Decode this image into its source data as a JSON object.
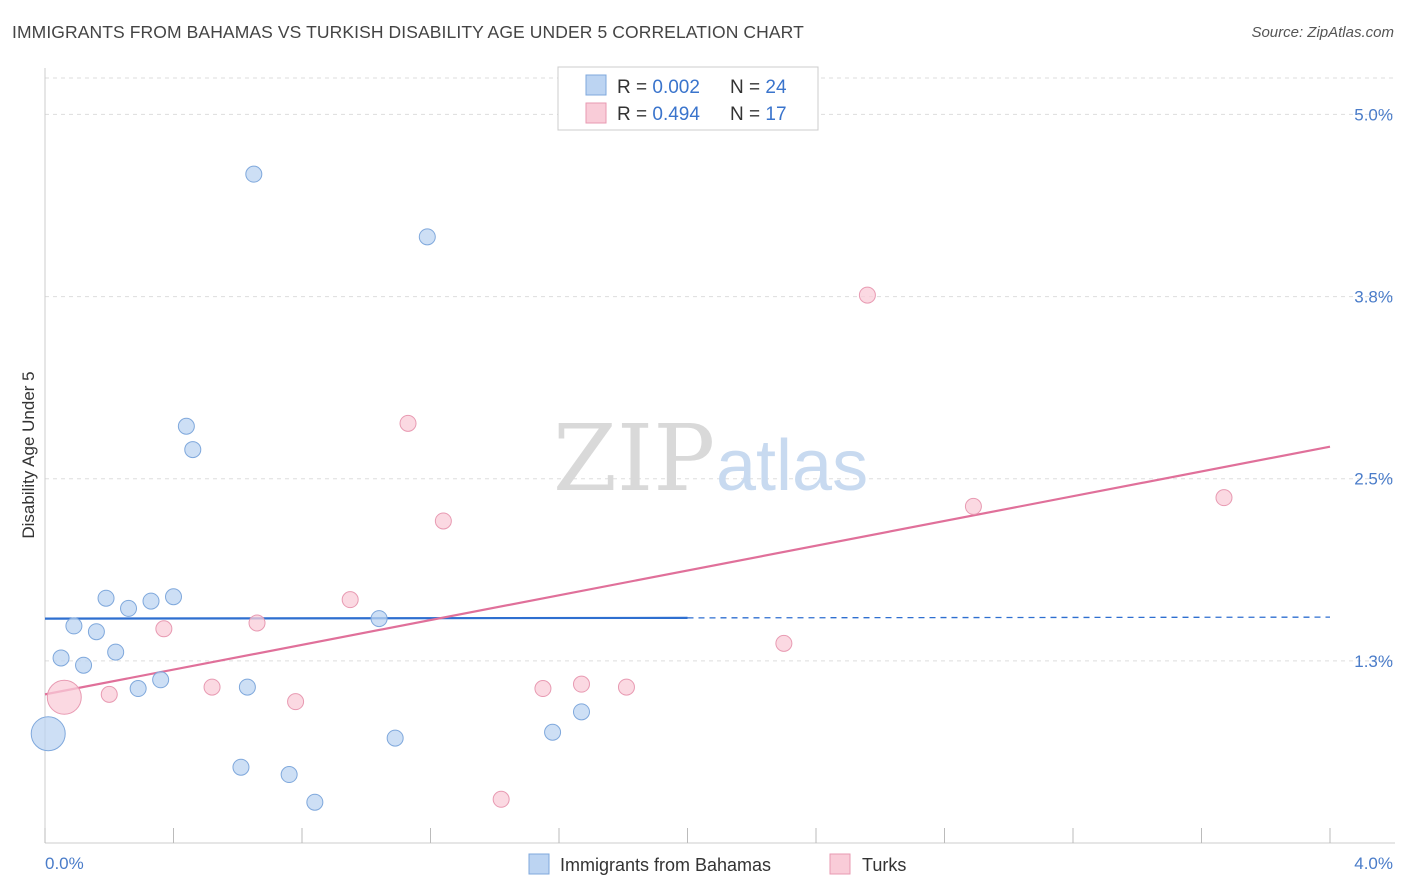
{
  "title": "IMMIGRANTS FROM BAHAMAS VS TURKISH DISABILITY AGE UNDER 5 CORRELATION CHART",
  "source": "Source: ZipAtlas.com",
  "watermark": {
    "zip": "ZIP",
    "atlas": "atlas"
  },
  "colors": {
    "blue_fill": "#bcd4f2",
    "blue_stroke": "#7fa8dc",
    "blue_line": "#2e6fd0",
    "pink_fill": "#f9ccd8",
    "pink_stroke": "#e89ab2",
    "pink_line": "#e0709a",
    "axis_label": "#4a7cc9",
    "grid": "#dddddd"
  },
  "legend": {
    "rows": [
      {
        "r_label": "R = ",
        "r_value": "0.002",
        "n_label": "N = ",
        "n_value": "24",
        "color": "blue"
      },
      {
        "r_label": "R = ",
        "r_value": "0.494",
        "n_label": "N = ",
        "n_value": "17",
        "color": "pink"
      }
    ]
  },
  "chart_data": {
    "type": "scatter",
    "title": "IMMIGRANTS FROM BAHAMAS VS TURKISH DISABILITY AGE UNDER 5 CORRELATION CHART",
    "xlabel": "",
    "ylabel": "Disability Age Under 5",
    "xlim": [
      0.0,
      4.0
    ],
    "ylim": [
      0.0,
      5.25
    ],
    "x_tick_labels": [
      "0.0%",
      "4.0%"
    ],
    "y_ticks": [
      1.25,
      2.5,
      3.75,
      5.0
    ],
    "y_tick_labels": [
      "1.3%",
      "2.5%",
      "3.8%",
      "5.0%"
    ],
    "grid": true,
    "legend_position": "top-center",
    "series": [
      {
        "name": "Immigrants from Bahamas",
        "color": "blue",
        "points": [
          {
            "x": 0.01,
            "y": 0.75,
            "big": true
          },
          {
            "x": 0.05,
            "y": 1.27
          },
          {
            "x": 0.09,
            "y": 1.49
          },
          {
            "x": 0.12,
            "y": 1.22
          },
          {
            "x": 0.16,
            "y": 1.45
          },
          {
            "x": 0.19,
            "y": 1.68
          },
          {
            "x": 0.22,
            "y": 1.31
          },
          {
            "x": 0.26,
            "y": 1.61
          },
          {
            "x": 0.29,
            "y": 1.06
          },
          {
            "x": 0.33,
            "y": 1.66
          },
          {
            "x": 0.36,
            "y": 1.12
          },
          {
            "x": 0.4,
            "y": 1.69
          },
          {
            "x": 0.44,
            "y": 2.86
          },
          {
            "x": 0.46,
            "y": 2.7
          },
          {
            "x": 0.61,
            "y": 0.52
          },
          {
            "x": 0.63,
            "y": 1.07
          },
          {
            "x": 0.65,
            "y": 4.59
          },
          {
            "x": 0.76,
            "y": 0.47
          },
          {
            "x": 0.84,
            "y": 0.28
          },
          {
            "x": 1.04,
            "y": 1.54
          },
          {
            "x": 1.09,
            "y": 0.72
          },
          {
            "x": 1.19,
            "y": 4.16
          },
          {
            "x": 1.58,
            "y": 0.76
          },
          {
            "x": 1.67,
            "y": 0.9
          }
        ],
        "trend": {
          "x0": 0.0,
          "y0": 1.54,
          "x1": 2.0,
          "y1": 1.545,
          "dash_to_x": 4.0,
          "dash_to_y": 1.55
        }
      },
      {
        "name": "Turks",
        "color": "pink",
        "points": [
          {
            "x": 0.06,
            "y": 1.0,
            "big": true
          },
          {
            "x": 0.2,
            "y": 1.02
          },
          {
            "x": 0.37,
            "y": 1.47
          },
          {
            "x": 0.52,
            "y": 1.07
          },
          {
            "x": 0.66,
            "y": 1.51
          },
          {
            "x": 0.78,
            "y": 0.97
          },
          {
            "x": 0.95,
            "y": 1.67
          },
          {
            "x": 1.13,
            "y": 2.88
          },
          {
            "x": 1.24,
            "y": 2.21
          },
          {
            "x": 1.42,
            "y": 0.3
          },
          {
            "x": 1.55,
            "y": 1.06
          },
          {
            "x": 1.67,
            "y": 1.09
          },
          {
            "x": 1.81,
            "y": 1.07
          },
          {
            "x": 2.3,
            "y": 1.37
          },
          {
            "x": 2.56,
            "y": 3.76
          },
          {
            "x": 2.89,
            "y": 2.31
          },
          {
            "x": 3.67,
            "y": 2.37
          }
        ],
        "trend": {
          "x0": 0.0,
          "y0": 1.02,
          "x1": 4.0,
          "y1": 2.72
        }
      }
    ]
  },
  "bottom_legend": [
    {
      "label": "Immigrants from Bahamas",
      "color": "blue"
    },
    {
      "label": "Turks",
      "color": "pink"
    }
  ]
}
